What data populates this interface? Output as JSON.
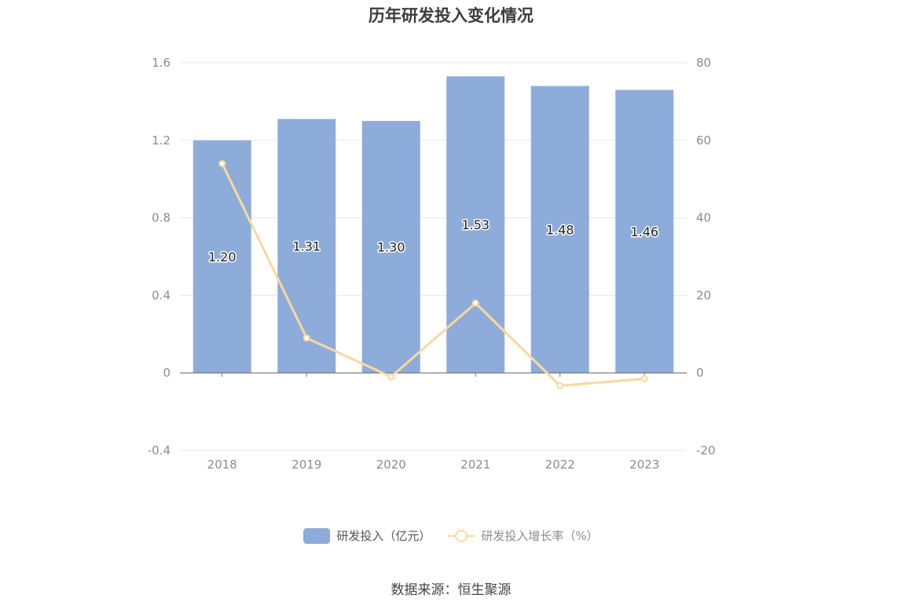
{
  "chart_data": {
    "type": "bar",
    "title": "历年研发投入变化情况",
    "categories": [
      "2018",
      "2019",
      "2020",
      "2021",
      "2022",
      "2023"
    ],
    "series": [
      {
        "name": "研发投入（亿元）",
        "type": "bar",
        "axis": "left",
        "color": "#8eacd9",
        "values": [
          1.2,
          1.31,
          1.3,
          1.53,
          1.48,
          1.46
        ],
        "labels": [
          "1.20",
          "1.31",
          "1.30",
          "1.53",
          "1.48",
          "1.46"
        ]
      },
      {
        "name": "研发投入增长率（%）",
        "type": "line",
        "axis": "right",
        "color": "#fbd89d",
        "values": [
          54.0,
          9.0,
          -1.0,
          18.0,
          -3.3,
          -1.5
        ]
      }
    ],
    "y_left": {
      "ylim": [
        -0.4,
        1.6
      ],
      "ticks": [
        "-0.4",
        "0",
        "0.4",
        "0.8",
        "1.2",
        "1.6"
      ]
    },
    "y_right": {
      "ylim": [
        -20,
        80
      ],
      "ticks": [
        "-20",
        "0",
        "20",
        "40",
        "60",
        "80"
      ]
    },
    "grid": true,
    "legend_position": "bottom"
  },
  "source_note": "数据来源：恒生聚源"
}
